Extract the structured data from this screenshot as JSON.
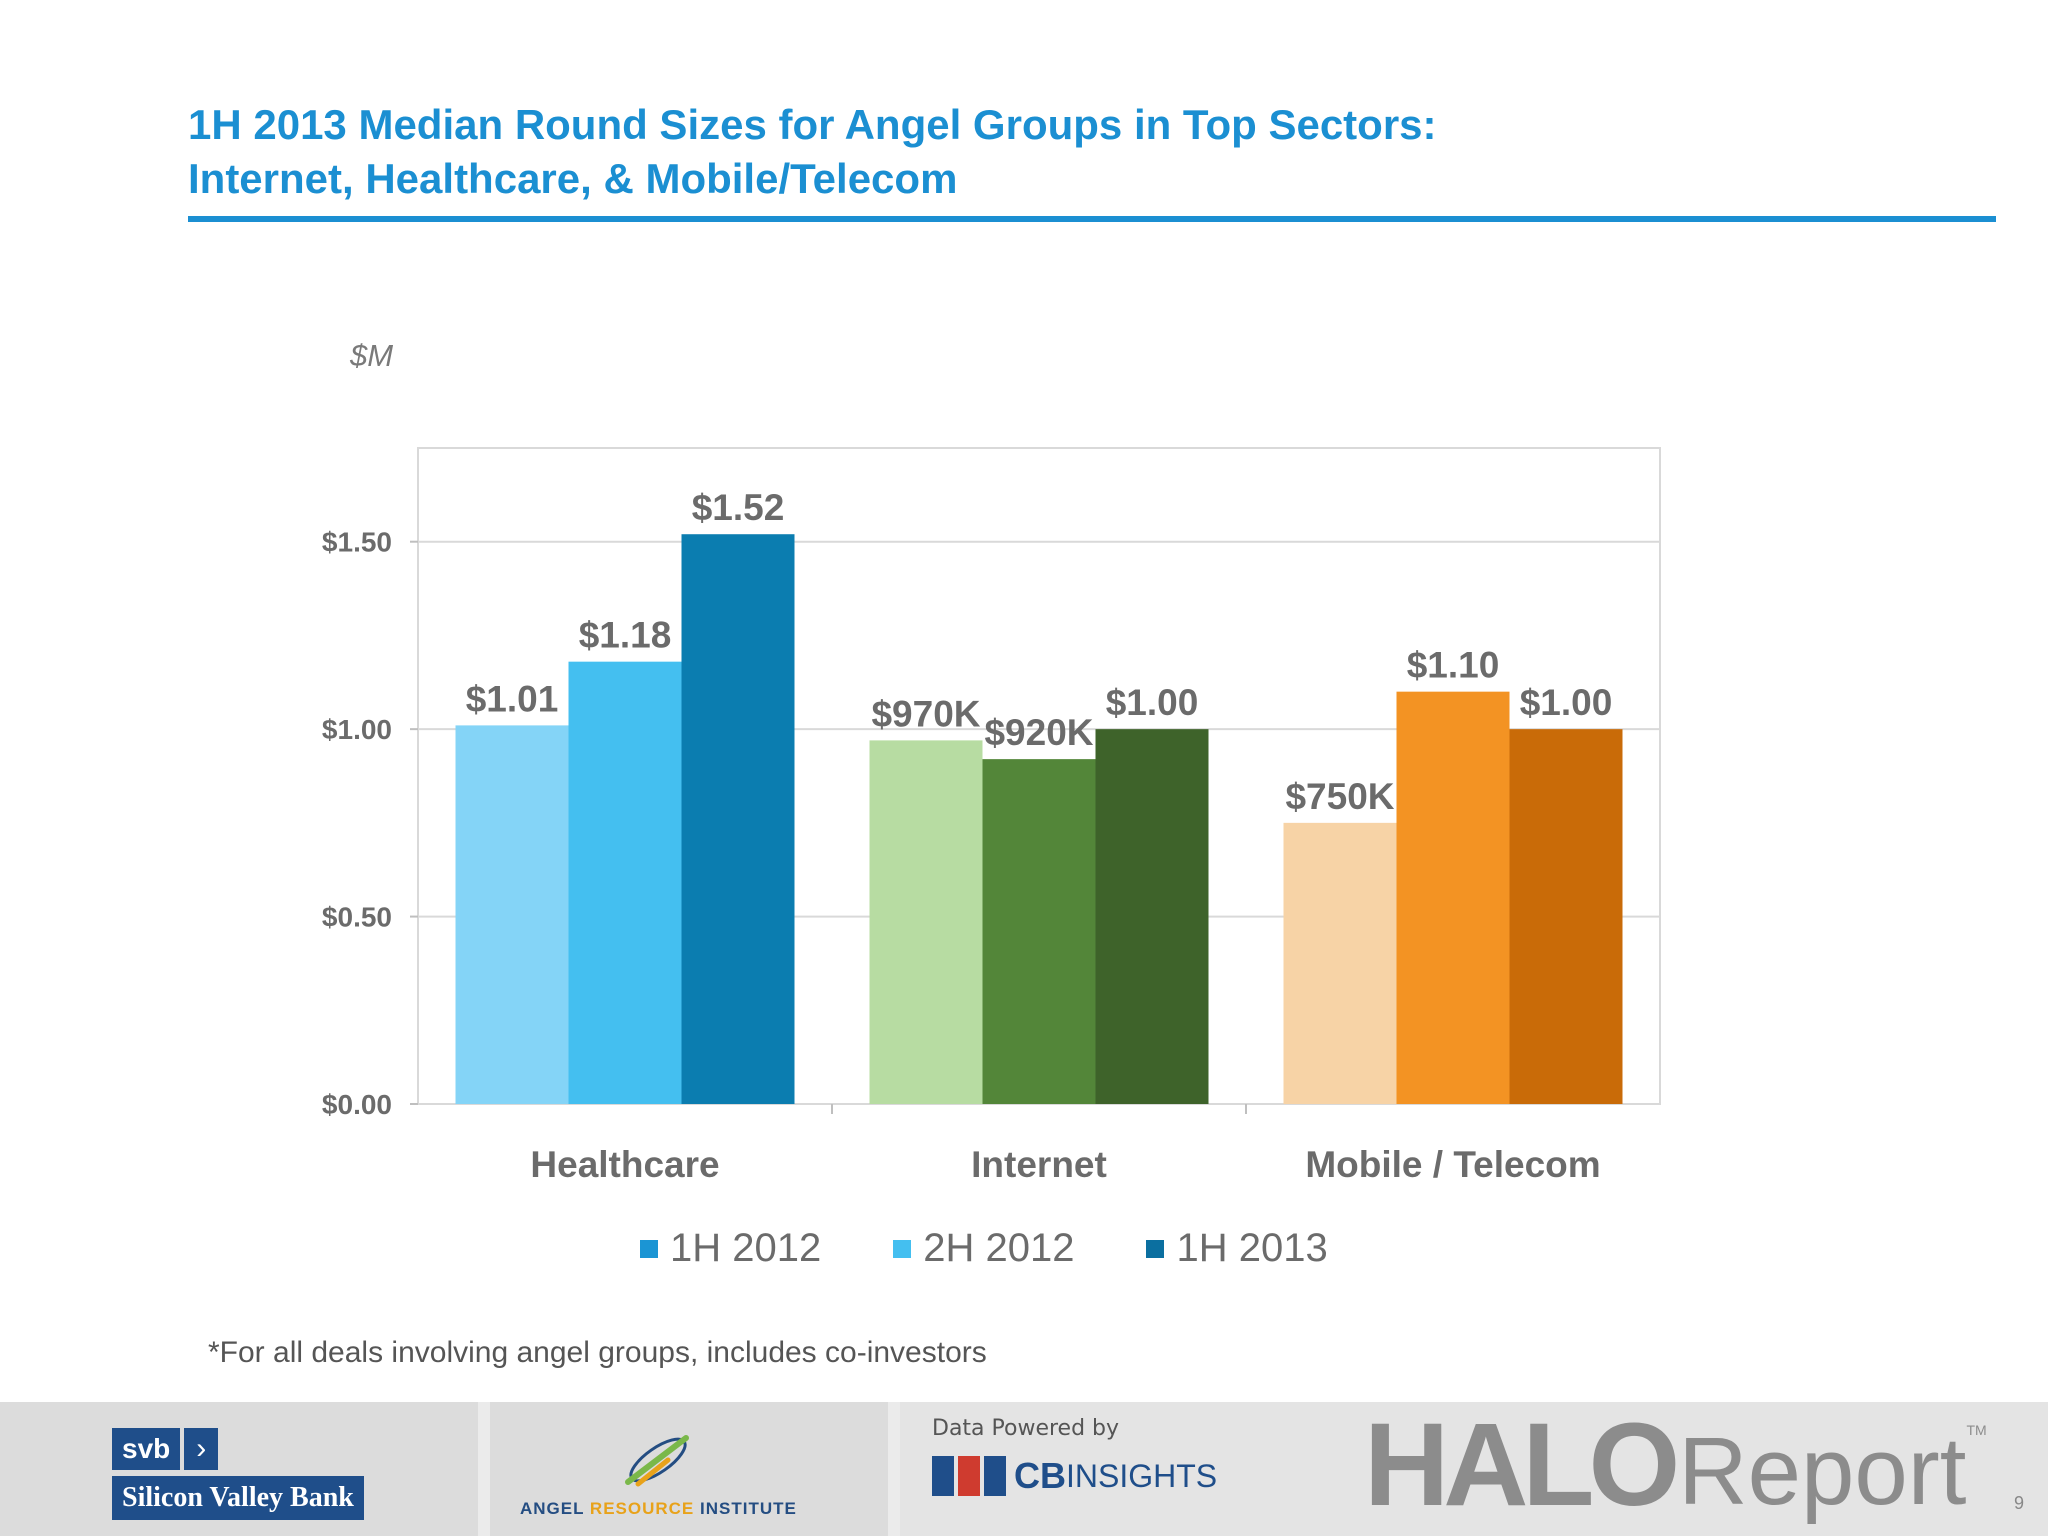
{
  "title": {
    "line1": "1H 2013 Median Round Sizes for Angel Groups in Top Sectors:",
    "line2": "Internet, Healthcare, & Mobile/Telecom"
  },
  "unit_label": "$M",
  "footnote": "*For all deals involving angel groups, includes co-investors",
  "page_number": "9",
  "footer": {
    "svb_short": "svb",
    "svb_chevron": "›",
    "svb_full": "Silicon Valley Bank",
    "ari_part1": "ANGEL ",
    "ari_part2": "RESOURCE",
    "ari_part3": " INSTITUTE",
    "cb_powered": "Data Powered by",
    "cb_bold": "CB",
    "cb_light": "INSIGHTS",
    "halo": "HALO",
    "report": "Report",
    "tm": "TM"
  },
  "chart_data": {
    "type": "bar",
    "title": "",
    "xlabel": "",
    "ylabel": "$M",
    "categories": [
      "Healthcare",
      "Internet",
      "Mobile / Telecom"
    ],
    "series": [
      {
        "name": "1H 2012",
        "values": [
          1.01,
          0.97,
          0.75
        ]
      },
      {
        "name": "2H 2012",
        "values": [
          1.18,
          0.92,
          1.1
        ]
      },
      {
        "name": "1H 2013",
        "values": [
          1.52,
          1.0,
          1.0
        ]
      }
    ],
    "data_labels": [
      [
        "$1.01",
        "$1.18",
        "$1.52"
      ],
      [
        "$970K",
        "$920K",
        "$1.00"
      ],
      [
        "$750K",
        "$1.10",
        "$1.00"
      ]
    ],
    "bar_colors": [
      [
        "#84d4f7",
        "#44bff0",
        "#0b7db0"
      ],
      [
        "#b7dca2",
        "#538639",
        "#3e632a"
      ],
      [
        "#f7d3a6",
        "#f39323",
        "#c96b08"
      ]
    ],
    "legend_colors": [
      "#1b95d4",
      "#44bff0",
      "#0b6fa0"
    ],
    "ylim": [
      0,
      1.75
    ],
    "yticks": [
      0,
      0.5,
      1.0,
      1.5
    ],
    "ytick_labels": [
      "$0.00",
      "$0.50",
      "$1.00",
      "$1.50"
    ],
    "grid": true,
    "legend_position": "bottom"
  }
}
